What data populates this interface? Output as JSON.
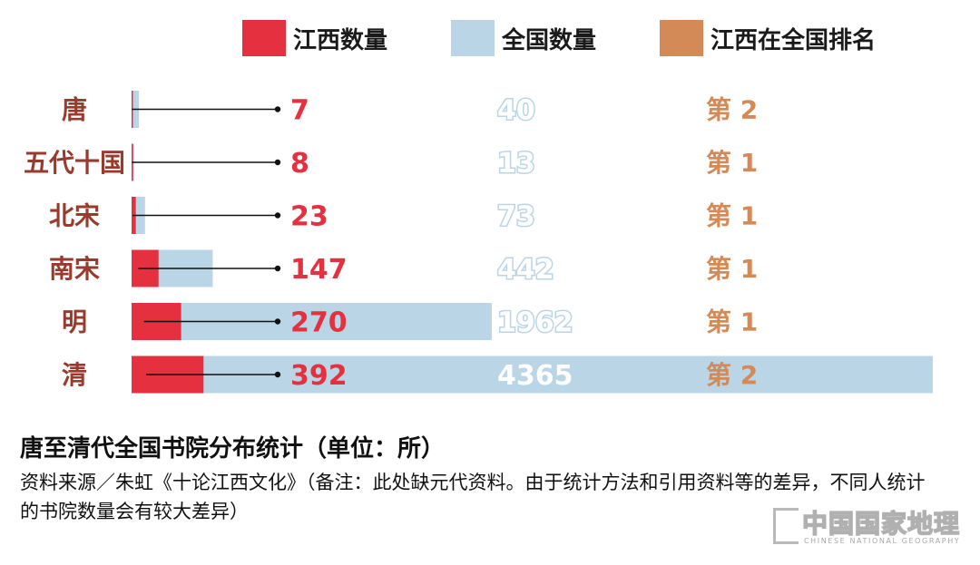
{
  "chart_data": {
    "type": "bar",
    "categories": [
      "唐",
      "五代十国",
      "北宋",
      "南宋",
      "明",
      "清"
    ],
    "series": [
      {
        "name": "江西数量",
        "values": [
          7,
          8,
          23,
          147,
          270,
          392
        ],
        "color": "#e5313f"
      },
      {
        "name": "全国数量",
        "values": [
          40,
          13,
          73,
          442,
          1962,
          4365
        ],
        "color": "#b9d5e6"
      }
    ],
    "rank_series": {
      "name": "江西在全国排名",
      "color": "#d48a57",
      "labels": [
        "第 2",
        "第 1",
        "第 1",
        "第 1",
        "第 1",
        "第 2"
      ]
    },
    "xlim": [
      0,
      4365
    ],
    "legend_position": "top",
    "title": "唐至清代全国书院分布统计（单位：所）",
    "source": "资料来源／朱虹《十论江西文化》（备注：此处缺元代资料。由于统计方法和引用资料等的差异，不同人统计的书院数量会有较大差异）"
  },
  "logo": {
    "cn": "中国国家地理",
    "en": "CHINESE NATIONAL GEOGRAPHY"
  }
}
